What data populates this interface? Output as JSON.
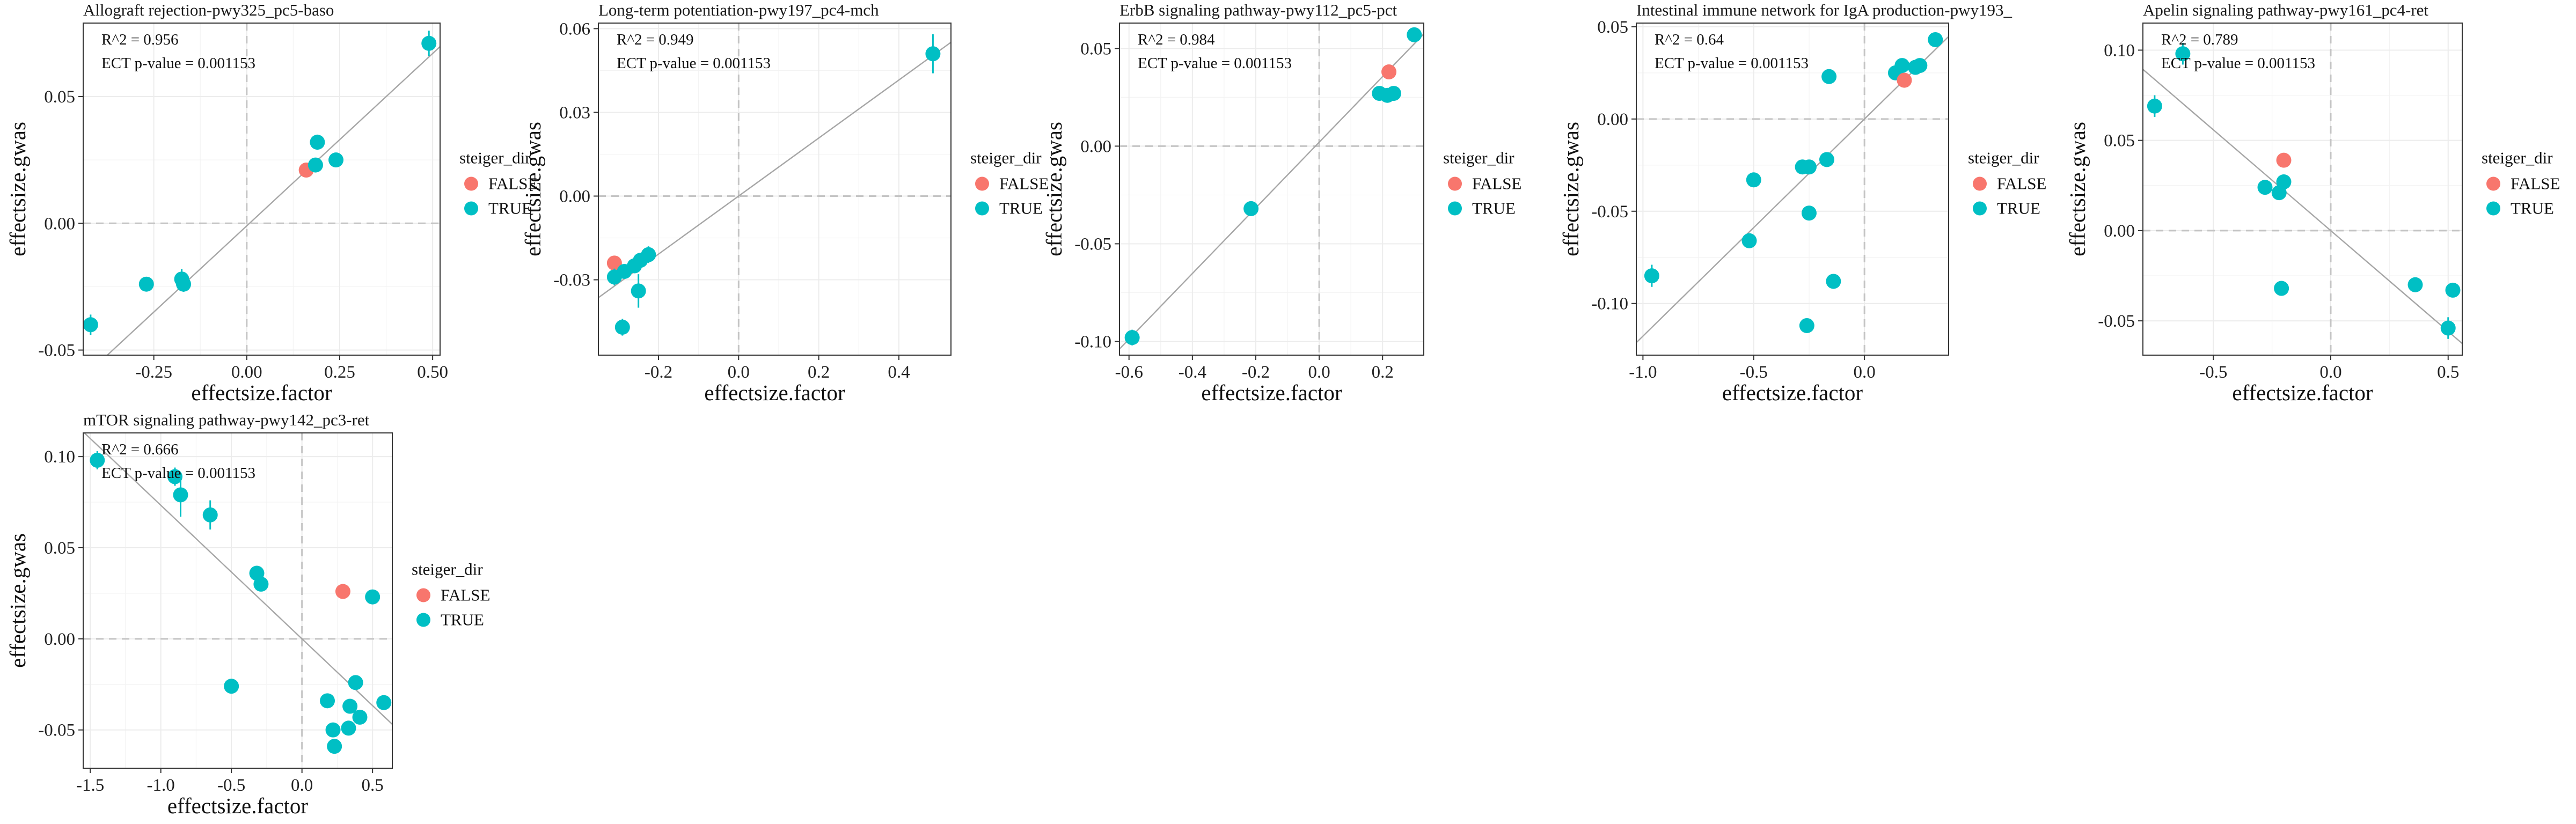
{
  "colors": {
    "FALSE": "#F8766D",
    "TRUE": "#00BFC4",
    "fit_line": "#a6a6a6",
    "zero_line": "#c4c4c4",
    "grid": "#ececec",
    "panel_border": "#333333"
  },
  "legend": {
    "title": "steiger_dir",
    "entries": [
      "FALSE",
      "TRUE"
    ]
  },
  "chart_data": [
    {
      "type": "scatter",
      "title": "Allograft rejection-pwy325_pc5-baso",
      "xlabel": "effectsize.factor",
      "ylabel": "effectsize.gwas",
      "xlim": [
        -0.44,
        0.52
      ],
      "ylim": [
        -0.052,
        0.079
      ],
      "xticks": [
        -0.25,
        0,
        0.25,
        0.5
      ],
      "xticklabels": [
        "-0.25",
        "0.00",
        "0.25",
        "0.50"
      ],
      "yticks": [
        -0.05,
        0,
        0.05
      ],
      "yticklabels": [
        "-0.05",
        "0.00",
        "0.05"
      ],
      "stats": {
        "r2": "R^2 =  0.956",
        "pval": "ECT p-value = 0.001153"
      },
      "fit": {
        "slope": 0.136,
        "intercept": -0.001
      },
      "points": [
        {
          "x": -0.42,
          "y": -0.04,
          "steiger_dir": "TRUE",
          "err": 0.004
        },
        {
          "x": -0.27,
          "y": -0.024,
          "steiger_dir": "TRUE",
          "err": 0.002
        },
        {
          "x": -0.175,
          "y": -0.022,
          "steiger_dir": "TRUE",
          "err": 0.004
        },
        {
          "x": -0.17,
          "y": -0.024,
          "steiger_dir": "TRUE",
          "err": 0.003
        },
        {
          "x": 0.16,
          "y": 0.021,
          "steiger_dir": "FALSE",
          "err": 0.0
        },
        {
          "x": 0.185,
          "y": 0.023,
          "steiger_dir": "TRUE",
          "err": 0.002
        },
        {
          "x": 0.19,
          "y": 0.032,
          "steiger_dir": "TRUE",
          "err": 0.003
        },
        {
          "x": 0.24,
          "y": 0.025,
          "steiger_dir": "TRUE",
          "err": 0.002
        },
        {
          "x": 0.49,
          "y": 0.071,
          "steiger_dir": "TRUE",
          "err": 0.005
        }
      ]
    },
    {
      "type": "scatter",
      "title": "Long-term potentiation-pwy197_pc4-mch",
      "xlabel": "effectsize.factor",
      "ylabel": "effectsize.gwas",
      "xlim": [
        -0.35,
        0.53
      ],
      "ylim": [
        -0.057,
        0.062
      ],
      "xticks": [
        -0.2,
        0,
        0.2,
        0.4
      ],
      "xticklabels": [
        "-0.2",
        "0.0",
        "0.2",
        "0.4"
      ],
      "yticks": [
        -0.03,
        0,
        0.03,
        0.06
      ],
      "yticklabels": [
        "-0.03",
        "0.00",
        "0.03",
        "0.06"
      ],
      "stats": {
        "r2": "R^2 =  0.949",
        "pval": "ECT p-value = 0.001153"
      },
      "fit": {
        "slope": 0.104,
        "intercept": 0.0
      },
      "points": [
        {
          "x": -0.31,
          "y": -0.024,
          "steiger_dir": "FALSE",
          "err": 0.0
        },
        {
          "x": -0.31,
          "y": -0.029,
          "steiger_dir": "TRUE",
          "err": 0.003
        },
        {
          "x": -0.285,
          "y": -0.027,
          "steiger_dir": "TRUE",
          "err": 0.002
        },
        {
          "x": -0.26,
          "y": -0.025,
          "steiger_dir": "TRUE",
          "err": 0.002
        },
        {
          "x": -0.245,
          "y": -0.023,
          "steiger_dir": "TRUE",
          "err": 0.002
        },
        {
          "x": -0.225,
          "y": -0.021,
          "steiger_dir": "TRUE",
          "err": 0.003
        },
        {
          "x": -0.25,
          "y": -0.034,
          "steiger_dir": "TRUE",
          "err": 0.006
        },
        {
          "x": -0.29,
          "y": -0.047,
          "steiger_dir": "TRUE",
          "err": 0.003
        },
        {
          "x": 0.485,
          "y": 0.051,
          "steiger_dir": "TRUE",
          "err": 0.007
        }
      ]
    },
    {
      "type": "scatter",
      "title": "ErbB signaling pathway-pwy112_pc5-pct",
      "xlabel": "effectsize.factor",
      "ylabel": "effectsize.gwas",
      "xlim": [
        -0.63,
        0.33
      ],
      "ylim": [
        -0.107,
        0.063
      ],
      "xticks": [
        -0.6,
        -0.4,
        -0.2,
        0,
        0.2
      ],
      "xticklabels": [
        "-0.6",
        "-0.4",
        "-0.2",
        "0.0",
        "0.2"
      ],
      "yticks": [
        -0.1,
        -0.05,
        0,
        0.05
      ],
      "yticklabels": [
        "-0.10",
        "-0.05",
        "0.00",
        "0.05"
      ],
      "stats": {
        "r2": "R^2 =  0.984",
        "pval": "ECT p-value = 0.001153"
      },
      "fit": {
        "slope": 0.168,
        "intercept": 0.002
      },
      "points": [
        {
          "x": -0.59,
          "y": -0.098,
          "steiger_dir": "TRUE",
          "err": 0.004
        },
        {
          "x": -0.215,
          "y": -0.032,
          "steiger_dir": "TRUE",
          "err": 0.003
        },
        {
          "x": 0.19,
          "y": 0.027,
          "steiger_dir": "TRUE",
          "err": 0.002
        },
        {
          "x": 0.215,
          "y": 0.026,
          "steiger_dir": "TRUE",
          "err": 0.003
        },
        {
          "x": 0.235,
          "y": 0.027,
          "steiger_dir": "TRUE",
          "err": 0.002
        },
        {
          "x": 0.22,
          "y": 0.038,
          "steiger_dir": "FALSE",
          "err": 0.0
        },
        {
          "x": 0.3,
          "y": 0.057,
          "steiger_dir": "TRUE",
          "err": 0.003
        }
      ]
    },
    {
      "type": "scatter",
      "title": "Intestinal immune network for IgA production-pwy193_",
      "xlabel": "effectsize.factor",
      "ylabel": "effectsize.gwas",
      "xlim": [
        -1.03,
        0.38
      ],
      "ylim": [
        -0.128,
        0.052
      ],
      "xticks": [
        -1.0,
        -0.5,
        0.0
      ],
      "xticklabels": [
        "-1.0",
        "-0.5",
        "0.0"
      ],
      "yticks": [
        -0.1,
        -0.05,
        0,
        0.05
      ],
      "yticklabels": [
        "-0.10",
        "-0.05",
        "0.00",
        "0.05"
      ],
      "stats": {
        "r2": "R^2 =  0.64",
        "pval": "ECT p-value = 0.001153"
      },
      "fit": {
        "slope": 0.1177,
        "intercept": 0.0
      },
      "points": [
        {
          "x": -0.96,
          "y": -0.085,
          "steiger_dir": "TRUE",
          "err": 0.006
        },
        {
          "x": -0.52,
          "y": -0.066,
          "steiger_dir": "TRUE",
          "err": 0.004
        },
        {
          "x": -0.5,
          "y": -0.033,
          "steiger_dir": "TRUE",
          "err": 0.004
        },
        {
          "x": -0.28,
          "y": -0.026,
          "steiger_dir": "TRUE",
          "err": 0.002
        },
        {
          "x": -0.25,
          "y": -0.026,
          "steiger_dir": "TRUE",
          "err": 0.002
        },
        {
          "x": -0.25,
          "y": -0.051,
          "steiger_dir": "TRUE",
          "err": 0.003
        },
        {
          "x": -0.26,
          "y": -0.112,
          "steiger_dir": "TRUE",
          "err": 0.003
        },
        {
          "x": -0.17,
          "y": -0.022,
          "steiger_dir": "TRUE",
          "err": 0.002
        },
        {
          "x": -0.16,
          "y": 0.023,
          "steiger_dir": "TRUE",
          "err": 0.002
        },
        {
          "x": -0.14,
          "y": -0.088,
          "steiger_dir": "TRUE",
          "err": 0.002
        },
        {
          "x": 0.14,
          "y": 0.025,
          "steiger_dir": "TRUE",
          "err": 0.003
        },
        {
          "x": 0.17,
          "y": 0.029,
          "steiger_dir": "TRUE",
          "err": 0.002
        },
        {
          "x": 0.18,
          "y": 0.021,
          "steiger_dir": "FALSE",
          "err": 0.0
        },
        {
          "x": 0.23,
          "y": 0.028,
          "steiger_dir": "TRUE",
          "err": 0.002
        },
        {
          "x": 0.25,
          "y": 0.029,
          "steiger_dir": "TRUE",
          "err": 0.002
        },
        {
          "x": 0.32,
          "y": 0.043,
          "steiger_dir": "TRUE",
          "err": 0.003
        }
      ]
    },
    {
      "type": "scatter",
      "title": "Apelin signaling pathway-pwy161_pc4-ret",
      "xlabel": "effectsize.factor",
      "ylabel": "effectsize.gwas",
      "xlim": [
        -0.8,
        0.56
      ],
      "ylim": [
        -0.069,
        0.115
      ],
      "xticks": [
        -0.5,
        0,
        0.5
      ],
      "xticklabels": [
        "-0.5",
        "0.0",
        "0.5"
      ],
      "yticks": [
        -0.05,
        0,
        0.05,
        0.1
      ],
      "yticklabels": [
        "-0.05",
        "0.00",
        "0.05",
        "0.10"
      ],
      "stats": {
        "r2": "R^2 =  0.789",
        "pval": "ECT p-value = 0.001153"
      },
      "fit": {
        "slope": -0.1117,
        "intercept": 0.0
      },
      "points": [
        {
          "x": -0.75,
          "y": 0.069,
          "steiger_dir": "TRUE",
          "err": 0.006
        },
        {
          "x": -0.63,
          "y": 0.098,
          "steiger_dir": "TRUE",
          "err": 0.006
        },
        {
          "x": -0.28,
          "y": 0.024,
          "steiger_dir": "TRUE",
          "err": 0.002
        },
        {
          "x": -0.22,
          "y": 0.021,
          "steiger_dir": "TRUE",
          "err": 0.002
        },
        {
          "x": -0.2,
          "y": 0.027,
          "steiger_dir": "TRUE",
          "err": 0.004
        },
        {
          "x": -0.2,
          "y": 0.039,
          "steiger_dir": "FALSE",
          "err": 0.0
        },
        {
          "x": -0.21,
          "y": -0.032,
          "steiger_dir": "TRUE",
          "err": 0.002
        },
        {
          "x": 0.36,
          "y": -0.03,
          "steiger_dir": "TRUE",
          "err": 0.002
        },
        {
          "x": 0.5,
          "y": -0.054,
          "steiger_dir": "TRUE",
          "err": 0.006
        },
        {
          "x": 0.52,
          "y": -0.033,
          "steiger_dir": "TRUE",
          "err": 0.002
        }
      ]
    },
    {
      "type": "scatter",
      "title": "mTOR signaling pathway-pwy142_pc3-ret",
      "xlabel": "effectsize.factor",
      "ylabel": "effectsize.gwas",
      "xlim": [
        -1.55,
        0.64
      ],
      "ylim": [
        -0.071,
        0.113
      ],
      "xticks": [
        -1.5,
        -1.0,
        -0.5,
        0,
        0.5
      ],
      "xticklabels": [
        "-1.5",
        "-1.0",
        "-0.5",
        "0.0",
        "0.5"
      ],
      "yticks": [
        -0.05,
        0,
        0.05,
        0.1
      ],
      "yticklabels": [
        "-0.05",
        "0.00",
        "0.05",
        "0.10"
      ],
      "stats": {
        "r2": "R^2 =  0.666",
        "pval": "ECT p-value = 0.001153"
      },
      "fit": {
        "slope": -0.0733,
        "intercept": 0.0
      },
      "points": [
        {
          "x": -1.45,
          "y": 0.098,
          "steiger_dir": "TRUE",
          "err": 0.005
        },
        {
          "x": -0.9,
          "y": 0.089,
          "steiger_dir": "TRUE",
          "err": 0.005
        },
        {
          "x": -0.86,
          "y": 0.079,
          "steiger_dir": "TRUE",
          "err": 0.012
        },
        {
          "x": -0.65,
          "y": 0.068,
          "steiger_dir": "TRUE",
          "err": 0.008
        },
        {
          "x": -0.32,
          "y": 0.036,
          "steiger_dir": "TRUE",
          "err": 0.002
        },
        {
          "x": -0.29,
          "y": 0.03,
          "steiger_dir": "TRUE",
          "err": 0.002
        },
        {
          "x": -0.5,
          "y": -0.026,
          "steiger_dir": "TRUE",
          "err": 0.002
        },
        {
          "x": 0.29,
          "y": 0.026,
          "steiger_dir": "FALSE",
          "err": 0.0
        },
        {
          "x": 0.5,
          "y": 0.023,
          "steiger_dir": "TRUE",
          "err": 0.002
        },
        {
          "x": 0.18,
          "y": -0.034,
          "steiger_dir": "TRUE",
          "err": 0.002
        },
        {
          "x": 0.22,
          "y": -0.05,
          "steiger_dir": "TRUE",
          "err": 0.002
        },
        {
          "x": 0.23,
          "y": -0.059,
          "steiger_dir": "TRUE",
          "err": 0.002
        },
        {
          "x": 0.33,
          "y": -0.049,
          "steiger_dir": "TRUE",
          "err": 0.002
        },
        {
          "x": 0.34,
          "y": -0.037,
          "steiger_dir": "TRUE",
          "err": 0.002
        },
        {
          "x": 0.38,
          "y": -0.024,
          "steiger_dir": "TRUE",
          "err": 0.002
        },
        {
          "x": 0.41,
          "y": -0.043,
          "steiger_dir": "TRUE",
          "err": 0.002
        },
        {
          "x": 0.58,
          "y": -0.035,
          "steiger_dir": "TRUE",
          "err": 0.002
        }
      ]
    }
  ]
}
